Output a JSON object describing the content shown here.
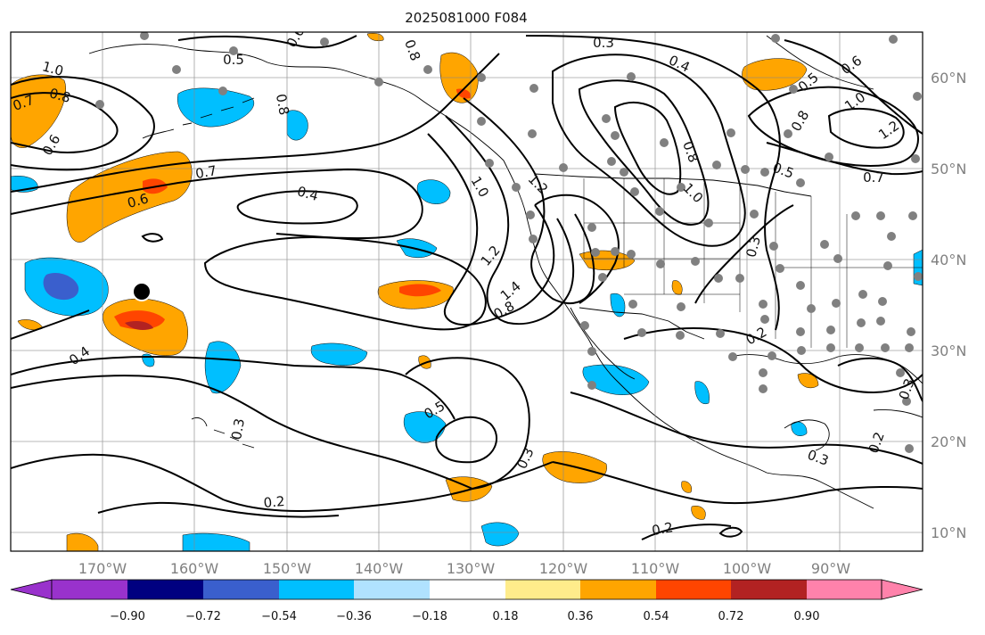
{
  "map": {
    "title": "2025081000 F084",
    "projection": "plate-carree",
    "lon_range": [
      -180,
      -81
    ],
    "lat_range": [
      8,
      65
    ],
    "lat_ticks": [
      {
        "value": 60,
        "label": "60°N"
      },
      {
        "value": 50,
        "label": "50°N"
      },
      {
        "value": 40,
        "label": "40°N"
      },
      {
        "value": 30,
        "label": "30°N"
      },
      {
        "value": 20,
        "label": "20°N"
      },
      {
        "value": 10,
        "label": "10°N"
      }
    ],
    "lon_ticks": [
      {
        "value": -170,
        "label": "170°W"
      },
      {
        "value": -160,
        "label": "160°W"
      },
      {
        "value": -150,
        "label": "150°W"
      },
      {
        "value": -140,
        "label": "140°W"
      },
      {
        "value": -130,
        "label": "130°W"
      },
      {
        "value": -120,
        "label": "120°W"
      },
      {
        "value": -110,
        "label": "110°W"
      },
      {
        "value": -100,
        "label": "100°W"
      },
      {
        "value": -90,
        "label": "90°W"
      }
    ],
    "grid": true,
    "contour_labels": [
      "1.0",
      "0.8",
      "0.7",
      "0.6",
      "0.5",
      "0.8",
      "0.8",
      "0.6",
      "0.3",
      "0.4",
      "0.6",
      "0.5",
      "1.0",
      "1.2",
      "0.7",
      "0.7",
      "0.6",
      "0.4",
      "1.0",
      "1.2",
      "1.0",
      "0.8",
      "0.8",
      "0.5",
      "0.3",
      "1.2",
      "1.4",
      "0.8",
      "0.4",
      "0.2",
      "0.5",
      "0.3",
      "0.3",
      "0.2",
      "0.2",
      "0.3",
      "0.2",
      "0.3"
    ],
    "marker": {
      "lon": -165,
      "lat": 36
    },
    "colors": {
      "grid": "#888888",
      "coast": "#000000",
      "contour": "#000000",
      "station": "#808080"
    }
  },
  "colorbar": {
    "ticks": [
      "−0.90",
      "−0.72",
      "−0.54",
      "−0.36",
      "−0.18",
      "0.18",
      "0.36",
      "0.54",
      "0.72",
      "0.90"
    ],
    "colors": [
      "#9932cc",
      "#000080",
      "#3a5fcd",
      "#00bfff",
      "#b0e2ff",
      "#ffffff",
      "#ffec8b",
      "#ffa500",
      "#ff4500",
      "#b22222",
      "#ff82ab"
    ]
  }
}
